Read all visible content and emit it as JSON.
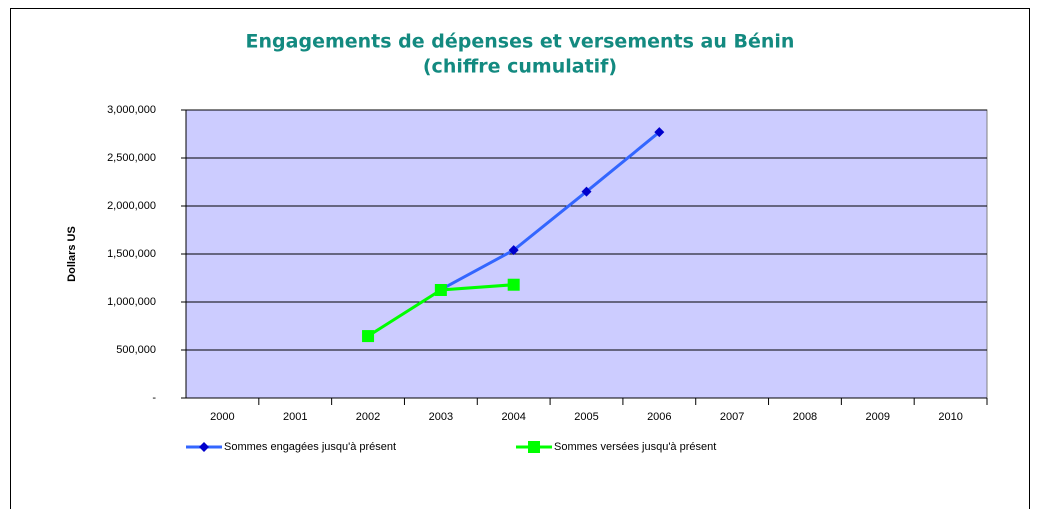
{
  "chart_data": {
    "type": "line",
    "title": "Engagements de dépenses et versements au Bénin",
    "subtitle": "(chiffre cumulatif)",
    "y_label": "Dollars US",
    "categories": [
      "2000",
      "2001",
      "2002",
      "2003",
      "2004",
      "2005",
      "2006",
      "2007",
      "2008",
      "2009",
      "2010"
    ],
    "series": [
      {
        "name": "Sommes engagées jusqu'à présent",
        "color": "#3366ff",
        "marker": "diamond",
        "marker_color": "#0000cc",
        "values": [
          null,
          null,
          null,
          1130000,
          1540000,
          2150000,
          2770000,
          null,
          null,
          null,
          null
        ]
      },
      {
        "name": "Sommes versées jusqu'à présent",
        "color": "#00ff00",
        "marker": "square",
        "marker_color": "#00ff00",
        "values": [
          null,
          null,
          645000,
          1125000,
          1180000,
          null,
          null,
          null,
          null,
          null,
          null
        ]
      }
    ],
    "ylim": [
      0,
      3000000
    ],
    "yticks": [
      {
        "value": 0,
        "label": "-"
      },
      {
        "value": 500000,
        "label": "500,000"
      },
      {
        "value": 1000000,
        "label": "1,000,000"
      },
      {
        "value": 1500000,
        "label": "1,500,000"
      },
      {
        "value": 2000000,
        "label": "2,000,000"
      },
      {
        "value": 2500000,
        "label": "2,500,000"
      },
      {
        "value": 3000000,
        "label": "3,000,000"
      }
    ],
    "grid": true,
    "plot_background": "#ccccff",
    "legend": "bottom"
  }
}
